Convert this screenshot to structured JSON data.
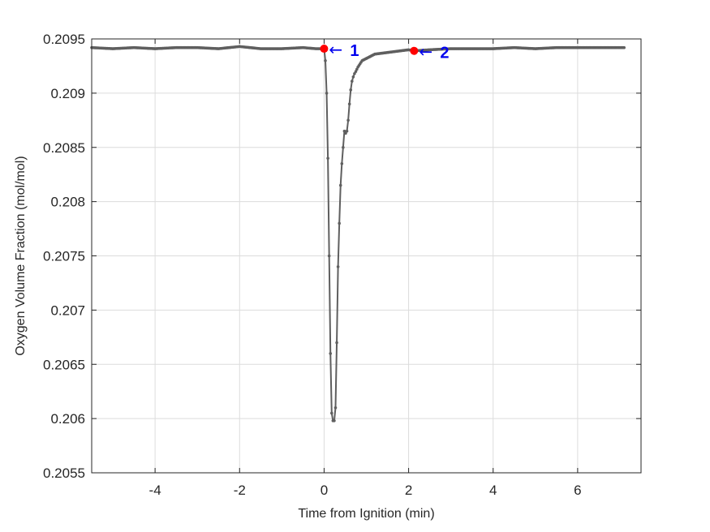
{
  "chart_data": {
    "type": "line",
    "title": "",
    "xlabel": "Time from Ignition (min)",
    "ylabel": "Oxygen Volume Fraction (mol/mol)",
    "xlim": [
      -5.5,
      7.5
    ],
    "ylim": [
      0.2055,
      0.2095
    ],
    "x_ticks": [
      -4,
      -2,
      0,
      2,
      4,
      6
    ],
    "x_tick_labels": [
      "-4",
      "-2",
      "0",
      "2",
      "4",
      "6"
    ],
    "y_ticks": [
      0.2055,
      0.206,
      0.2065,
      0.207,
      0.2075,
      0.208,
      0.2085,
      0.209,
      0.2095
    ],
    "y_tick_labels": [
      "0.2055",
      "0.206",
      "0.2065",
      "0.207",
      "0.2075",
      "0.208",
      "0.2085",
      "0.209",
      "0.2095"
    ],
    "grid": true,
    "series": [
      {
        "color": "#5f5f5f",
        "marker": "dot",
        "x": [
          -5.5,
          -5.0,
          -4.5,
          -4.0,
          -3.5,
          -3.0,
          -2.5,
          -2.0,
          -1.5,
          -1.0,
          -0.5,
          -0.2,
          0.0,
          0.03,
          0.06,
          0.09,
          0.12,
          0.15,
          0.18,
          0.21,
          0.24,
          0.27,
          0.3,
          0.33,
          0.36,
          0.39,
          0.42,
          0.45,
          0.48,
          0.51,
          0.54,
          0.57,
          0.6,
          0.63,
          0.66,
          0.69,
          0.72,
          0.75,
          0.8,
          0.85,
          0.9,
          1.0,
          1.1,
          1.2,
          1.4,
          1.6,
          1.8,
          2.0,
          2.13,
          2.5,
          3.0,
          3.5,
          4.0,
          4.5,
          5.0,
          5.5,
          6.0,
          6.5,
          7.1
        ],
        "y": [
          0.20942,
          0.20941,
          0.20942,
          0.20941,
          0.20942,
          0.20942,
          0.20941,
          0.20943,
          0.20941,
          0.20941,
          0.20942,
          0.20941,
          0.20941,
          0.2093,
          0.209,
          0.2084,
          0.2075,
          0.2066,
          0.20605,
          0.20598,
          0.20598,
          0.2061,
          0.2067,
          0.2074,
          0.2078,
          0.20815,
          0.20835,
          0.2085,
          0.20865,
          0.20863,
          0.20865,
          0.20875,
          0.2089,
          0.20903,
          0.20911,
          0.20915,
          0.20918,
          0.2092,
          0.20924,
          0.20927,
          0.2093,
          0.20932,
          0.20934,
          0.20936,
          0.20937,
          0.20938,
          0.20939,
          0.2094,
          0.20939,
          0.2094,
          0.20941,
          0.20941,
          0.20941,
          0.20942,
          0.20941,
          0.20942,
          0.20942,
          0.20942,
          0.20942
        ]
      }
    ],
    "highlight_points": [
      {
        "label": "1",
        "x": 0.0,
        "y": 0.20941,
        "color": "#ff0000"
      },
      {
        "label": "2",
        "x": 2.13,
        "y": 0.20939,
        "color": "#ff0000"
      }
    ],
    "annotations": [
      {
        "text": "1",
        "arrow": "←",
        "color": "#0000ee"
      },
      {
        "text": "2",
        "arrow": "←",
        "color": "#0000ee"
      }
    ]
  }
}
